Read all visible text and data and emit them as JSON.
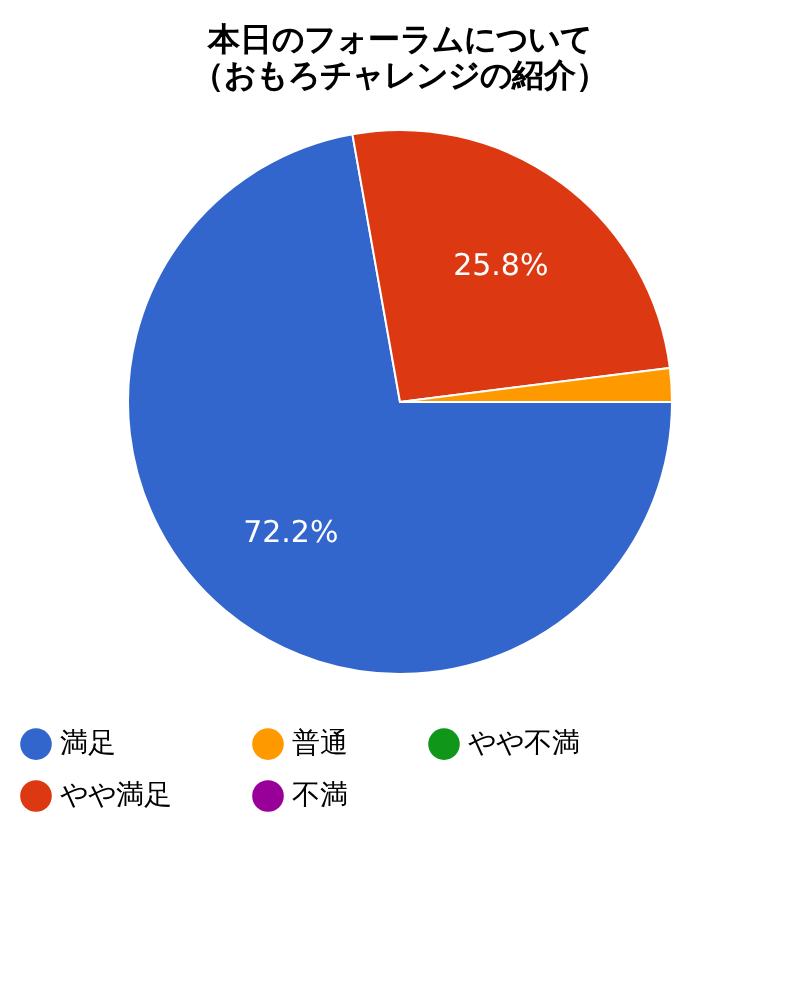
{
  "chart_data": {
    "type": "pie",
    "title": "本日のフォーラムについて（おもろチャレンジの紹介）",
    "categories": [
      "満足",
      "やや満足",
      "普通",
      "やや不満",
      "不満"
    ],
    "values": [
      72.2,
      25.8,
      2.0,
      0,
      0
    ],
    "colors": [
      "#3366cc",
      "#dc3912",
      "#ff9900",
      "#109618",
      "#990099"
    ],
    "value_labels": [
      "72.2%",
      "25.8%",
      null,
      null,
      null
    ],
    "legend": "bottom"
  }
}
